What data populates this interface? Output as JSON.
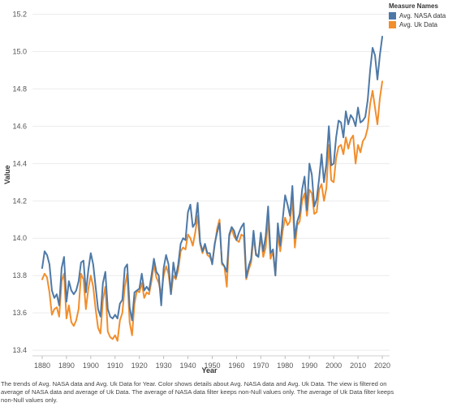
{
  "legend": {
    "title": "Measure Names",
    "items": [
      {
        "label": "Avg. NASA data",
        "color": "#4e79a7"
      },
      {
        "label": "Avg. Uk Data",
        "color": "#f28e2b"
      }
    ]
  },
  "caption": "The trends of Avg. NASA data and Avg. Uk Data for Year.  Color shows details about Avg. NASA data and Avg. Uk Data. The view is filtered on average of NASA data and average of Uk Data. The average of NASA data filter keeps non-Null values only. The average of Uk Data filter keeps non-Null values only.",
  "chart_data": {
    "type": "line",
    "xlabel": "Year",
    "ylabel": "Value",
    "xlim": [
      1876,
      2023
    ],
    "ylim": [
      13.37,
      15.25
    ],
    "x_ticks": [
      1880,
      1890,
      1900,
      1910,
      1920,
      1930,
      1940,
      1950,
      1960,
      1970,
      1980,
      1990,
      2000,
      2010,
      2020
    ],
    "y_ticks": [
      13.4,
      13.6,
      13.8,
      14.0,
      14.2,
      14.4,
      14.6,
      14.8,
      15.0,
      15.2
    ],
    "y_tick_labels": [
      "13.4",
      "13.6",
      "13.8",
      "14.0",
      "14.2",
      "14.4",
      "14.6",
      "14.8",
      "15.0",
      "15.2"
    ],
    "grid": true,
    "legend_position": "top-right",
    "x_start": 1880,
    "series": [
      {
        "name": "Avg. NASA data",
        "color": "#4e79a7",
        "values": [
          13.84,
          13.93,
          13.91,
          13.86,
          13.72,
          13.68,
          13.7,
          13.64,
          13.84,
          13.9,
          13.66,
          13.77,
          13.72,
          13.7,
          13.72,
          13.77,
          13.87,
          13.88,
          13.71,
          13.83,
          13.92,
          13.86,
          13.74,
          13.62,
          13.58,
          13.76,
          13.82,
          13.62,
          13.58,
          13.57,
          13.59,
          13.57,
          13.65,
          13.67,
          13.84,
          13.86,
          13.63,
          13.56,
          13.71,
          13.72,
          13.73,
          13.81,
          13.72,
          13.74,
          13.72,
          13.8,
          13.89,
          13.82,
          13.8,
          13.64,
          13.84,
          13.91,
          13.86,
          13.7,
          13.87,
          13.79,
          13.86,
          13.97,
          14.0,
          13.99,
          14.14,
          14.18,
          14.06,
          14.08,
          14.19,
          13.98,
          13.93,
          13.97,
          13.92,
          13.92,
          13.86,
          13.97,
          14.03,
          14.08,
          13.87,
          13.85,
          13.82,
          14.02,
          14.06,
          14.04,
          13.99,
          14.03,
          14.06,
          14.08,
          13.79,
          13.85,
          13.89,
          14.04,
          13.91,
          13.9,
          14.03,
          13.93,
          14.01,
          14.17,
          13.92,
          13.94,
          13.8,
          14.08,
          13.96,
          14.1,
          14.23,
          14.18,
          14.12,
          14.28,
          14.0,
          14.09,
          14.13,
          14.26,
          14.33,
          14.15,
          14.4,
          14.34,
          14.17,
          14.21,
          14.32,
          14.45,
          14.3,
          14.4,
          14.6,
          14.39,
          14.4,
          14.54,
          14.63,
          14.62,
          14.54,
          14.68,
          14.61,
          14.66,
          14.64,
          14.6,
          14.7,
          14.62,
          14.63,
          14.65,
          14.74,
          14.9,
          15.02,
          14.98,
          14.85,
          14.98,
          15.08
        ]
      },
      {
        "name": "Avg. Uk Data",
        "color": "#f28e2b",
        "values": [
          13.78,
          13.81,
          13.79,
          13.71,
          13.59,
          13.62,
          13.63,
          13.58,
          13.77,
          13.81,
          13.57,
          13.64,
          13.55,
          13.53,
          13.56,
          13.62,
          13.81,
          13.78,
          13.62,
          13.73,
          13.8,
          13.74,
          13.62,
          13.52,
          13.49,
          13.67,
          13.74,
          13.5,
          13.47,
          13.46,
          13.48,
          13.45,
          13.56,
          13.6,
          13.74,
          13.81,
          13.55,
          13.48,
          13.65,
          13.72,
          13.71,
          13.76,
          13.68,
          13.71,
          13.7,
          13.77,
          13.86,
          13.79,
          13.76,
          13.7,
          13.8,
          13.85,
          13.81,
          13.7,
          13.8,
          13.78,
          13.83,
          13.93,
          13.95,
          13.94,
          14.02,
          14.0,
          13.96,
          14.03,
          14.12,
          13.97,
          13.92,
          13.96,
          13.91,
          13.9,
          13.87,
          13.96,
          14.05,
          14.1,
          13.86,
          13.85,
          13.74,
          14.01,
          14.05,
          14.01,
          13.99,
          13.98,
          14.02,
          14.01,
          13.78,
          13.83,
          13.87,
          14.0,
          13.92,
          13.9,
          14.01,
          13.9,
          13.95,
          14.1,
          13.89,
          13.93,
          13.8,
          14.02,
          13.93,
          14.04,
          14.11,
          14.07,
          14.09,
          14.21,
          13.95,
          14.07,
          14.09,
          14.2,
          14.24,
          14.12,
          14.26,
          14.24,
          14.13,
          14.14,
          14.26,
          14.29,
          14.2,
          14.27,
          14.5,
          14.31,
          14.3,
          14.43,
          14.49,
          14.5,
          14.45,
          14.54,
          14.48,
          14.53,
          14.55,
          14.4,
          14.5,
          14.46,
          14.52,
          14.54,
          14.59,
          14.72,
          14.79,
          14.7,
          14.61,
          14.75,
          14.84
        ]
      }
    ]
  }
}
